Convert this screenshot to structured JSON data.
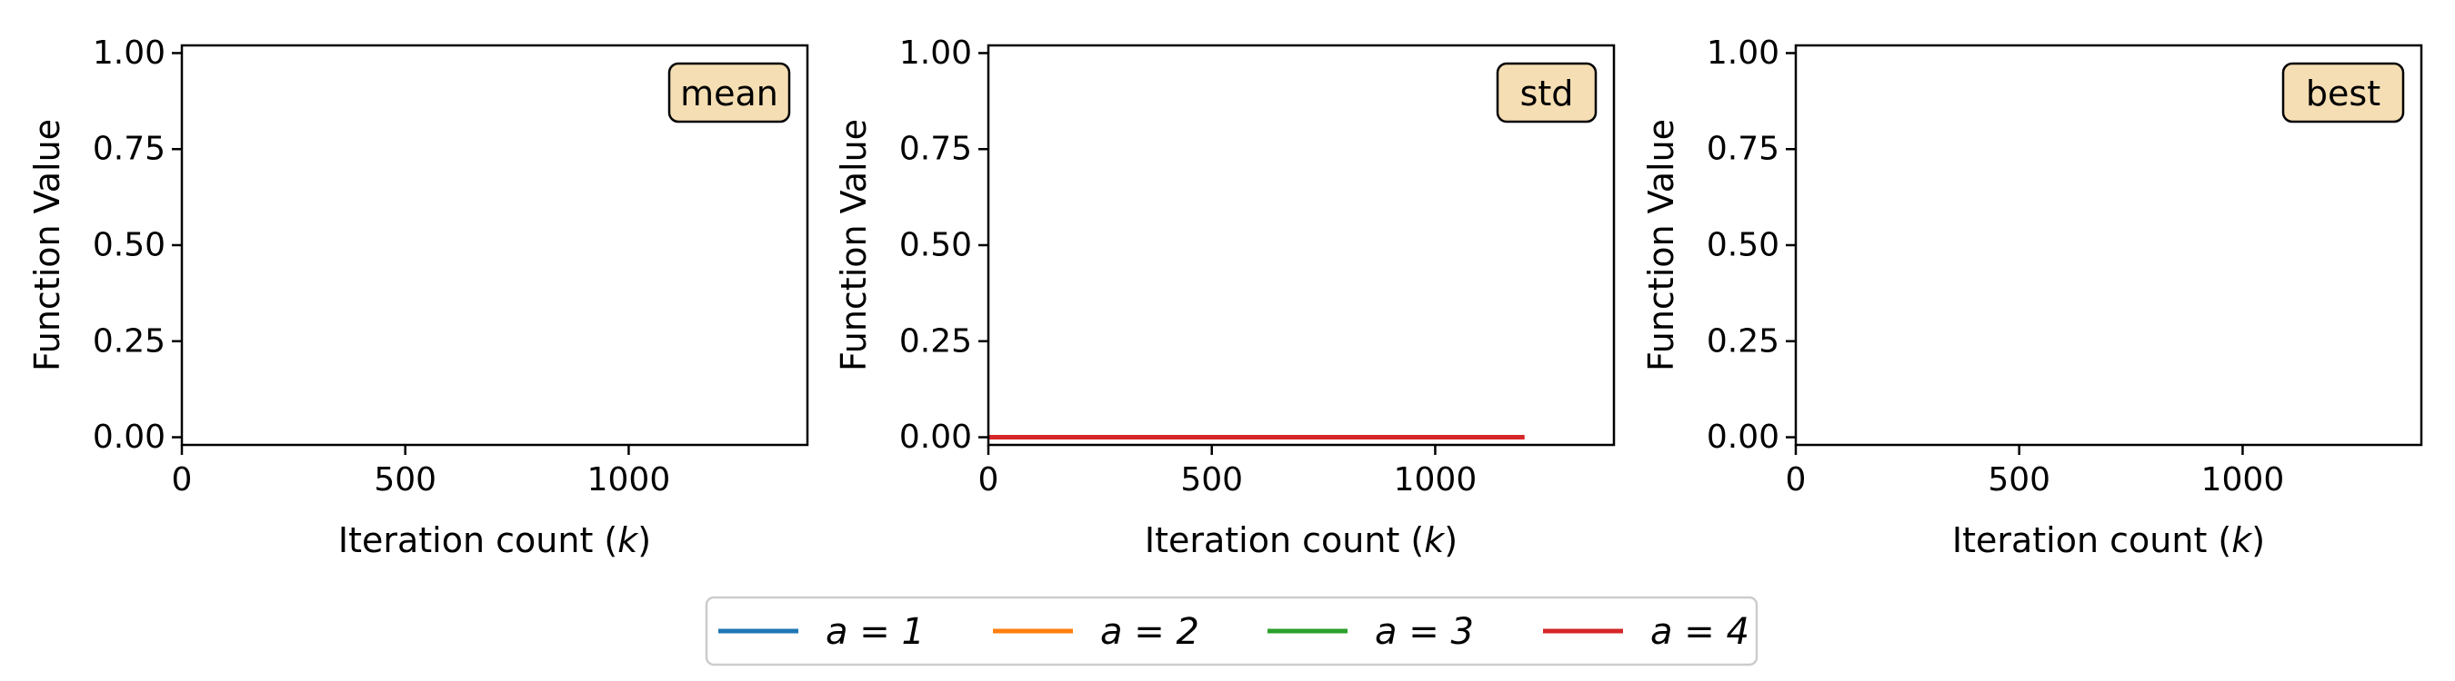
{
  "chart_data": [
    {
      "type": "line",
      "badge": "mean",
      "xlabel": "Iteration count (k)",
      "ylabel": "Function Value",
      "xlim": [
        0,
        1400
      ],
      "ylim": [
        -0.02,
        1.02
      ],
      "xticks": [
        0,
        500,
        1000
      ],
      "xtick_labels": [
        "0",
        "500",
        "1000"
      ],
      "yticks": [
        0,
        0.25,
        0.5,
        0.75,
        1
      ],
      "ytick_labels": [
        "0.00",
        "0.25",
        "0.50",
        "0.75",
        "1.00"
      ],
      "series": []
    },
    {
      "type": "line",
      "badge": "std",
      "xlabel": "Iteration count (k)",
      "ylabel": "Function Value",
      "xlim": [
        0,
        1400
      ],
      "ylim": [
        -0.02,
        1.02
      ],
      "xticks": [
        0,
        500,
        1000
      ],
      "xtick_labels": [
        "0",
        "500",
        "1000"
      ],
      "yticks": [
        0,
        0.25,
        0.5,
        0.75,
        1
      ],
      "ytick_labels": [
        "0.00",
        "0.25",
        "0.50",
        "0.75",
        "1.00"
      ],
      "series": [
        {
          "name": "a = 4",
          "color": "#d62728",
          "x": [
            0,
            1200
          ],
          "y": [
            0,
            0
          ]
        }
      ]
    },
    {
      "type": "line",
      "badge": "best",
      "xlabel": "Iteration count (k)",
      "ylabel": "Function Value",
      "xlim": [
        0,
        1400
      ],
      "ylim": [
        -0.02,
        1.02
      ],
      "xticks": [
        0,
        500,
        1000
      ],
      "xtick_labels": [
        "0",
        "500",
        "1000"
      ],
      "yticks": [
        0,
        0.25,
        0.5,
        0.75,
        1
      ],
      "ytick_labels": [
        "0.00",
        "0.25",
        "0.50",
        "0.75",
        "1.00"
      ],
      "series": []
    }
  ],
  "legend": {
    "position": "bottom-center",
    "entries": [
      {
        "label": "a = 1",
        "color": "#1f77b4"
      },
      {
        "label": "a = 2",
        "color": "#ff7f0e"
      },
      {
        "label": "a = 3",
        "color": "#2ca02c"
      },
      {
        "label": "a = 4",
        "color": "#d62728"
      }
    ]
  }
}
